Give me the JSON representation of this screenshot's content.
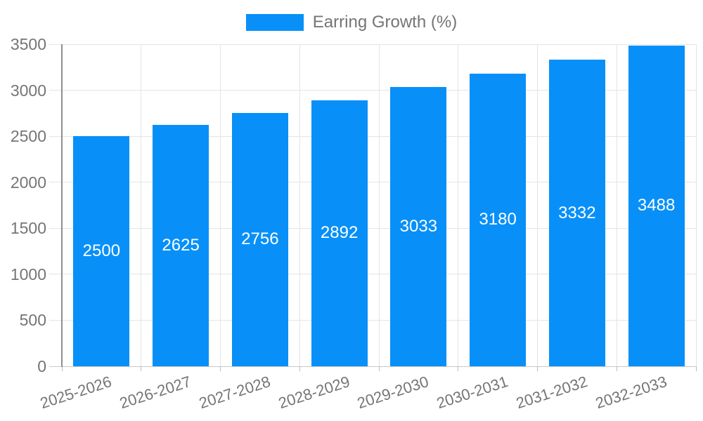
{
  "legend": {
    "label": "Earring Growth (%)",
    "swatch_color": "#0890f8"
  },
  "chart_data": {
    "type": "bar",
    "title": "Earring Growth (%)",
    "categories": [
      "2025-2026",
      "2026-2027",
      "2027-2028",
      "2028-2029",
      "2029-2030",
      "2030-2031",
      "2031-2032",
      "2032-2033"
    ],
    "values": [
      2500,
      2625,
      2756,
      2892,
      3033,
      3180,
      3332,
      3488
    ],
    "xlabel": "",
    "ylabel": "",
    "ylim": [
      0,
      3500
    ],
    "yticks": [
      0,
      500,
      1000,
      1500,
      2000,
      2500,
      3000,
      3500
    ],
    "grid": true,
    "legend_position": "top-center",
    "bar_color": "#0890f8",
    "value_label_color": "#ffffff",
    "axis_text_color": "#757575",
    "gridline_color": "#e4e4e4"
  }
}
